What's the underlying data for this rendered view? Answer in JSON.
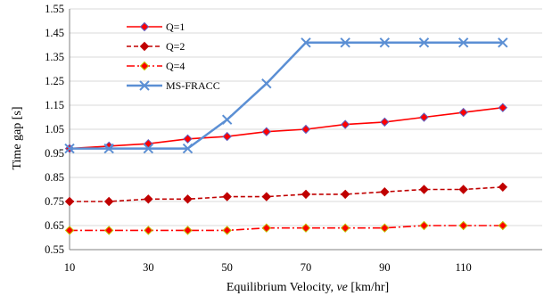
{
  "chart_data": {
    "type": "line",
    "title": "",
    "xlabel": {
      "prefix": "Equilibrium Velocity, ",
      "italic": "ve",
      "suffix": " [km/hr]"
    },
    "ylabel": "Time gap [s]",
    "xlim": [
      10,
      130
    ],
    "ylim": [
      0.55,
      1.55
    ],
    "x_ticks": [
      10,
      30,
      50,
      70,
      90,
      110
    ],
    "y_ticks": [
      0.55,
      0.65,
      0.75,
      0.85,
      0.95,
      1.05,
      1.15,
      1.25,
      1.35,
      1.45,
      1.55
    ],
    "grid": "horizontal",
    "legend_position": "top-left",
    "x": [
      10,
      20,
      30,
      40,
      50,
      60,
      70,
      80,
      90,
      100,
      110,
      120
    ],
    "series": [
      {
        "name": "Q=1",
        "color": "#ff0000",
        "marker": "diamond",
        "marker_edge": "#6060c0",
        "dash": "solid",
        "values": [
          0.97,
          0.98,
          0.99,
          1.01,
          1.02,
          1.04,
          1.05,
          1.07,
          1.08,
          1.1,
          1.12,
          1.14
        ]
      },
      {
        "name": "Q=2",
        "color": "#c00000",
        "marker": "diamond",
        "marker_edge": "#c00000",
        "dash": "dashed",
        "values": [
          0.75,
          0.75,
          0.76,
          0.76,
          0.77,
          0.77,
          0.78,
          0.78,
          0.79,
          0.8,
          0.8,
          0.81
        ]
      },
      {
        "name": "Q=4",
        "color": "#ff0000",
        "marker": "diamond",
        "marker_edge": "#c0c000",
        "dash": "dashdot",
        "values": [
          0.63,
          0.63,
          0.63,
          0.63,
          0.63,
          0.64,
          0.64,
          0.64,
          0.64,
          0.65,
          0.65,
          0.65
        ]
      },
      {
        "name": "MS-FRACC",
        "color": "#5b8fd4",
        "marker": "x",
        "marker_edge": "#5b8fd4",
        "dash": "solid",
        "values": [
          0.97,
          0.97,
          0.97,
          0.97,
          1.09,
          1.24,
          1.41,
          1.41,
          1.41,
          1.41,
          1.41,
          1.41
        ]
      }
    ]
  }
}
